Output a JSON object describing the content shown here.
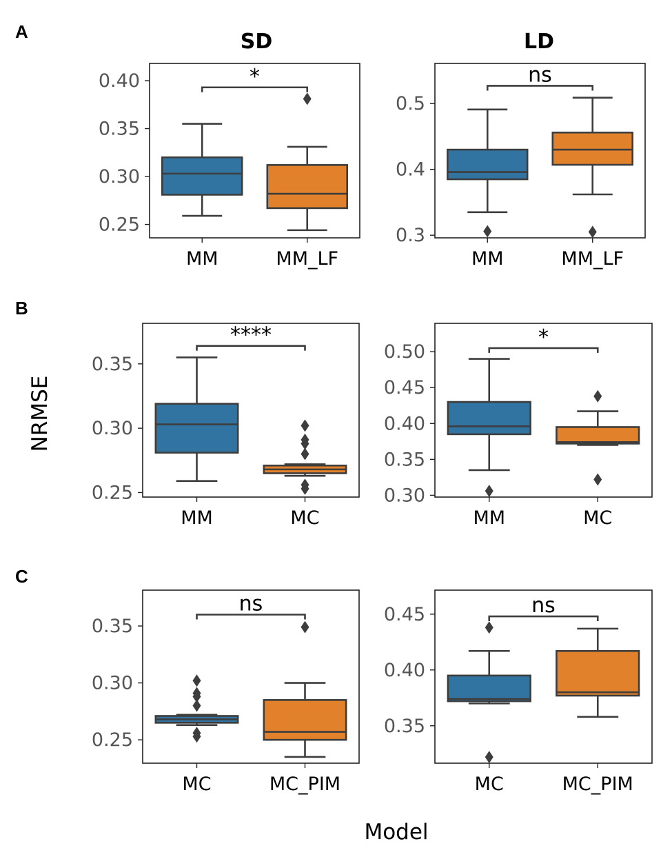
{
  "figure": {
    "ylabel": "NRMSE",
    "xlabel": "Model",
    "columns": [
      "SD",
      "LD"
    ],
    "panel_letters": [
      "A",
      "B",
      "C"
    ]
  },
  "colors": {
    "blue": "#3274a1",
    "orange": "#e1812c",
    "line": "#3d3d3d"
  },
  "chart_data": [
    {
      "type": "box",
      "panel": "A",
      "column": "SD",
      "categories": [
        "MM",
        "MM_LF"
      ],
      "ylim": [
        0.236,
        0.418
      ],
      "yticks": [
        0.25,
        0.3,
        0.35,
        0.4
      ],
      "tick_format": 2,
      "boxes": [
        {
          "q1": 0.281,
          "median": 0.303,
          "q3": 0.32,
          "whislo": 0.259,
          "whishi": 0.355,
          "fliers": []
        },
        {
          "q1": 0.267,
          "median": 0.282,
          "q3": 0.312,
          "whislo": 0.244,
          "whishi": 0.331,
          "fliers": [
            0.381
          ]
        }
      ],
      "annotation": {
        "text": "*",
        "bracket_y": 0.393
      }
    },
    {
      "type": "box",
      "panel": "A",
      "column": "LD",
      "categories": [
        "MM",
        "MM_LF"
      ],
      "ylim": [
        0.296,
        0.561
      ],
      "yticks": [
        0.3,
        0.4,
        0.5
      ],
      "tick_format": 1,
      "boxes": [
        {
          "q1": 0.385,
          "median": 0.396,
          "q3": 0.43,
          "whislo": 0.335,
          "whishi": 0.491,
          "fliers": [
            0.306
          ]
        },
        {
          "q1": 0.407,
          "median": 0.43,
          "q3": 0.456,
          "whislo": 0.362,
          "whishi": 0.509,
          "fliers": [
            0.305
          ]
        }
      ],
      "annotation": {
        "text": "ns",
        "bracket_y": 0.527
      }
    },
    {
      "type": "box",
      "panel": "B",
      "column": "SD",
      "categories": [
        "MM",
        "MC"
      ],
      "ylim": [
        0.2465,
        0.3815
      ],
      "yticks": [
        0.25,
        0.3,
        0.35
      ],
      "tick_format": 2,
      "boxes": [
        {
          "q1": 0.281,
          "median": 0.303,
          "q3": 0.319,
          "whislo": 0.259,
          "whishi": 0.355,
          "fliers": []
        },
        {
          "q1": 0.265,
          "median": 0.268,
          "q3": 0.271,
          "whislo": 0.263,
          "whishi": 0.272,
          "fliers": [
            0.302,
            0.291,
            0.288,
            0.28,
            0.256,
            0.253
          ]
        }
      ],
      "annotation": {
        "text": "****",
        "bracket_y": 0.364
      }
    },
    {
      "type": "box",
      "panel": "B",
      "column": "LD",
      "categories": [
        "MM",
        "MC"
      ],
      "ylim": [
        0.2975,
        0.5395
      ],
      "yticks": [
        0.3,
        0.35,
        0.4,
        0.45,
        0.5
      ],
      "tick_format": 2,
      "boxes": [
        {
          "q1": 0.385,
          "median": 0.396,
          "q3": 0.43,
          "whislo": 0.335,
          "whishi": 0.49,
          "fliers": [
            0.306
          ]
        },
        {
          "q1": 0.372,
          "median": 0.374,
          "q3": 0.395,
          "whislo": 0.37,
          "whishi": 0.417,
          "fliers": [
            0.438,
            0.322
          ]
        }
      ],
      "annotation": {
        "text": "*",
        "bracket_y": 0.505
      }
    },
    {
      "type": "box",
      "panel": "C",
      "column": "SD",
      "categories": [
        "MC",
        "MC_PIM"
      ],
      "ylim": [
        0.2295,
        0.3815
      ],
      "yticks": [
        0.25,
        0.3,
        0.35
      ],
      "tick_format": 2,
      "boxes": [
        {
          "q1": 0.265,
          "median": 0.268,
          "q3": 0.271,
          "whislo": 0.263,
          "whishi": 0.272,
          "fliers": [
            0.302,
            0.291,
            0.288,
            0.28,
            0.256,
            0.253
          ]
        },
        {
          "q1": 0.25,
          "median": 0.257,
          "q3": 0.285,
          "whislo": 0.235,
          "whishi": 0.3,
          "fliers": [
            0.349
          ]
        }
      ],
      "annotation": {
        "text": "ns",
        "bracket_y": 0.36
      }
    },
    {
      "type": "box",
      "panel": "C",
      "column": "LD",
      "categories": [
        "MC",
        "MC_PIM"
      ],
      "ylim": [
        0.3165,
        0.4715
      ],
      "yticks": [
        0.35,
        0.4,
        0.45
      ],
      "tick_format": 2,
      "boxes": [
        {
          "q1": 0.372,
          "median": 0.374,
          "q3": 0.395,
          "whislo": 0.37,
          "whishi": 0.417,
          "fliers": [
            0.438,
            0.322
          ]
        },
        {
          "q1": 0.377,
          "median": 0.38,
          "q3": 0.417,
          "whislo": 0.358,
          "whishi": 0.437,
          "fliers": []
        }
      ],
      "annotation": {
        "text": "ns",
        "bracket_y": 0.448
      }
    }
  ]
}
